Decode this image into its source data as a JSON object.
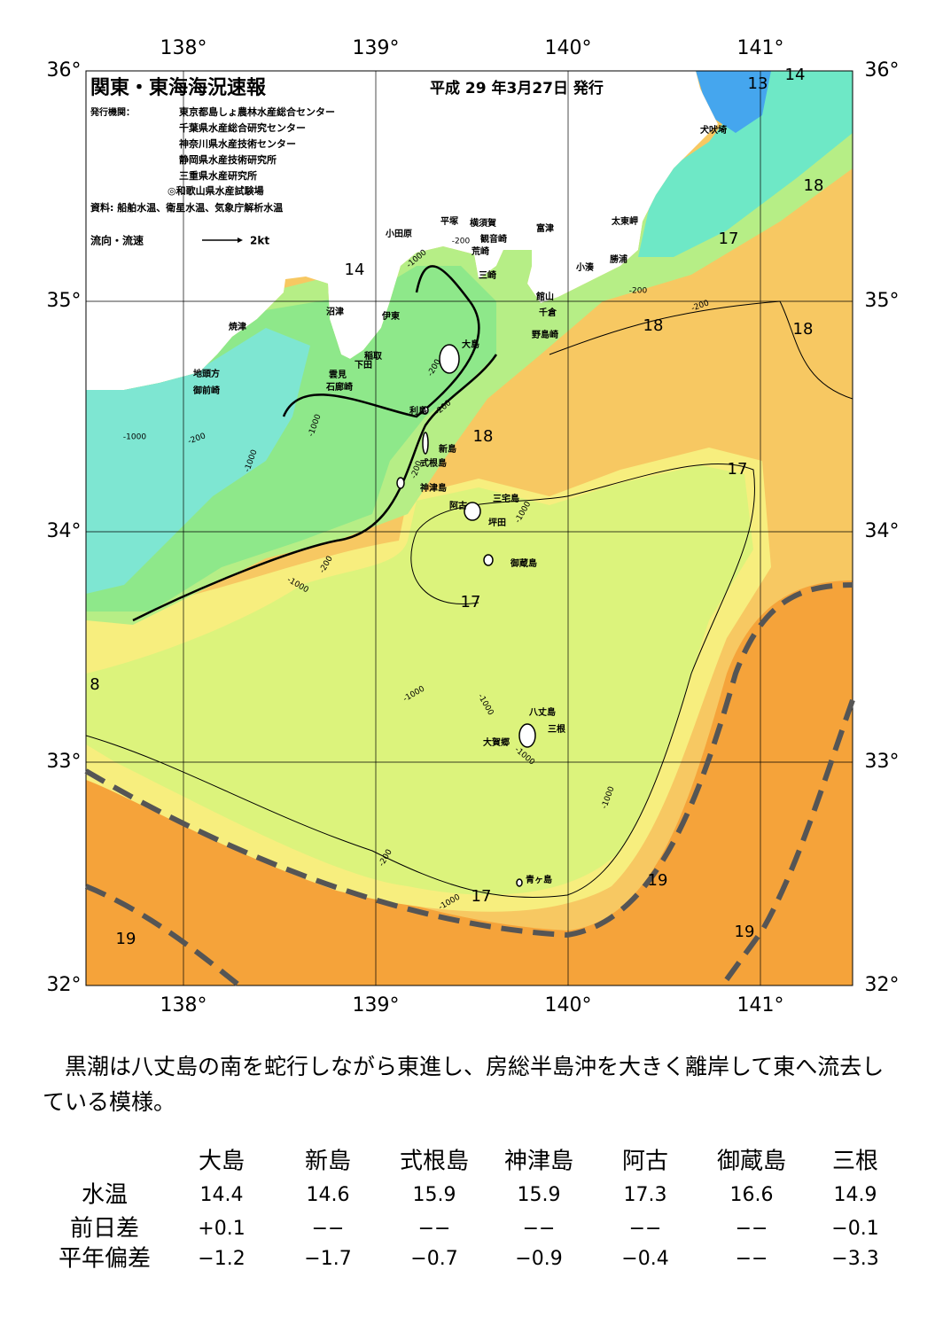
{
  "header": {
    "title": "関東・東海海況速報",
    "date": "平成 29 年3月27日 発行",
    "issuer_label": "発行機関：",
    "issuers": [
      "東京都島しょ農林水産総合センター",
      "千葉県水産総合研究センター",
      "神奈川県水産技術センター",
      "静岡県水産技術研究所",
      "三重県水産研究所",
      "◎和歌山県水産試験場"
    ],
    "source": "資料: 船舶水温、衛星水温、気象庁解析水温",
    "flow_label": "流向・流速",
    "flow_scale": "2kt"
  },
  "map": {
    "lon_labels": [
      "138°",
      "139°",
      "140°",
      "141°"
    ],
    "lat_labels": [
      "36°",
      "35°",
      "34°",
      "33°",
      "32°"
    ],
    "places": [
      "犬吠埼",
      "太東岬",
      "富津",
      "勝浦",
      "小湊",
      "館山",
      "千倉",
      "野島崎",
      "横須賀",
      "観音崎",
      "荒崎",
      "三崎",
      "平塚",
      "小田原",
      "沼津",
      "伊東",
      "焼津",
      "稲取",
      "下田",
      "雲見",
      "石廊崎",
      "地頭方",
      "御前崎",
      "大島",
      "利島",
      "新島",
      "式根島",
      "神津島",
      "三宅島",
      "阿古",
      "坪田",
      "御蔵島",
      "八丈島",
      "三根",
      "大賀郷",
      "青ヶ島"
    ],
    "temperature_labels": [
      "14",
      "13",
      "14",
      "18",
      "17",
      "18",
      "18",
      "18",
      "17",
      "17",
      "8",
      "19",
      "17",
      "19",
      "19"
    ],
    "depth_labels": [
      "-1000",
      "-200",
      "-200",
      "-200",
      "-200",
      "-1000",
      "-200",
      "-1000",
      "-1000",
      "-200",
      "-1000",
      "-1000",
      "-1000",
      "-1000",
      "-1000",
      "-200",
      "-1000",
      "-200",
      "-1000",
      "-200"
    ]
  },
  "summary": "黒潮は八丈島の南を蛇行しながら東進し、房総半島沖を大きく離岸して東へ流去している模様。",
  "table": {
    "columns": [
      "大島",
      "新島",
      "式根島",
      "神津島",
      "阿古",
      "御蔵島",
      "三根"
    ],
    "rows": [
      {
        "label": "水温",
        "values": [
          "14.4",
          "14.6",
          "15.9",
          "15.9",
          "17.3",
          "16.6",
          "14.9"
        ]
      },
      {
        "label": "前日差",
        "values": [
          "+0.1",
          "−−",
          "−−",
          "−−",
          "−−",
          "−−",
          "−0.1"
        ]
      },
      {
        "label": "平年偏差",
        "values": [
          "−1.2",
          "−1.7",
          "−0.7",
          "−0.9",
          "−0.4",
          "−−",
          "−3.3"
        ]
      }
    ]
  }
}
